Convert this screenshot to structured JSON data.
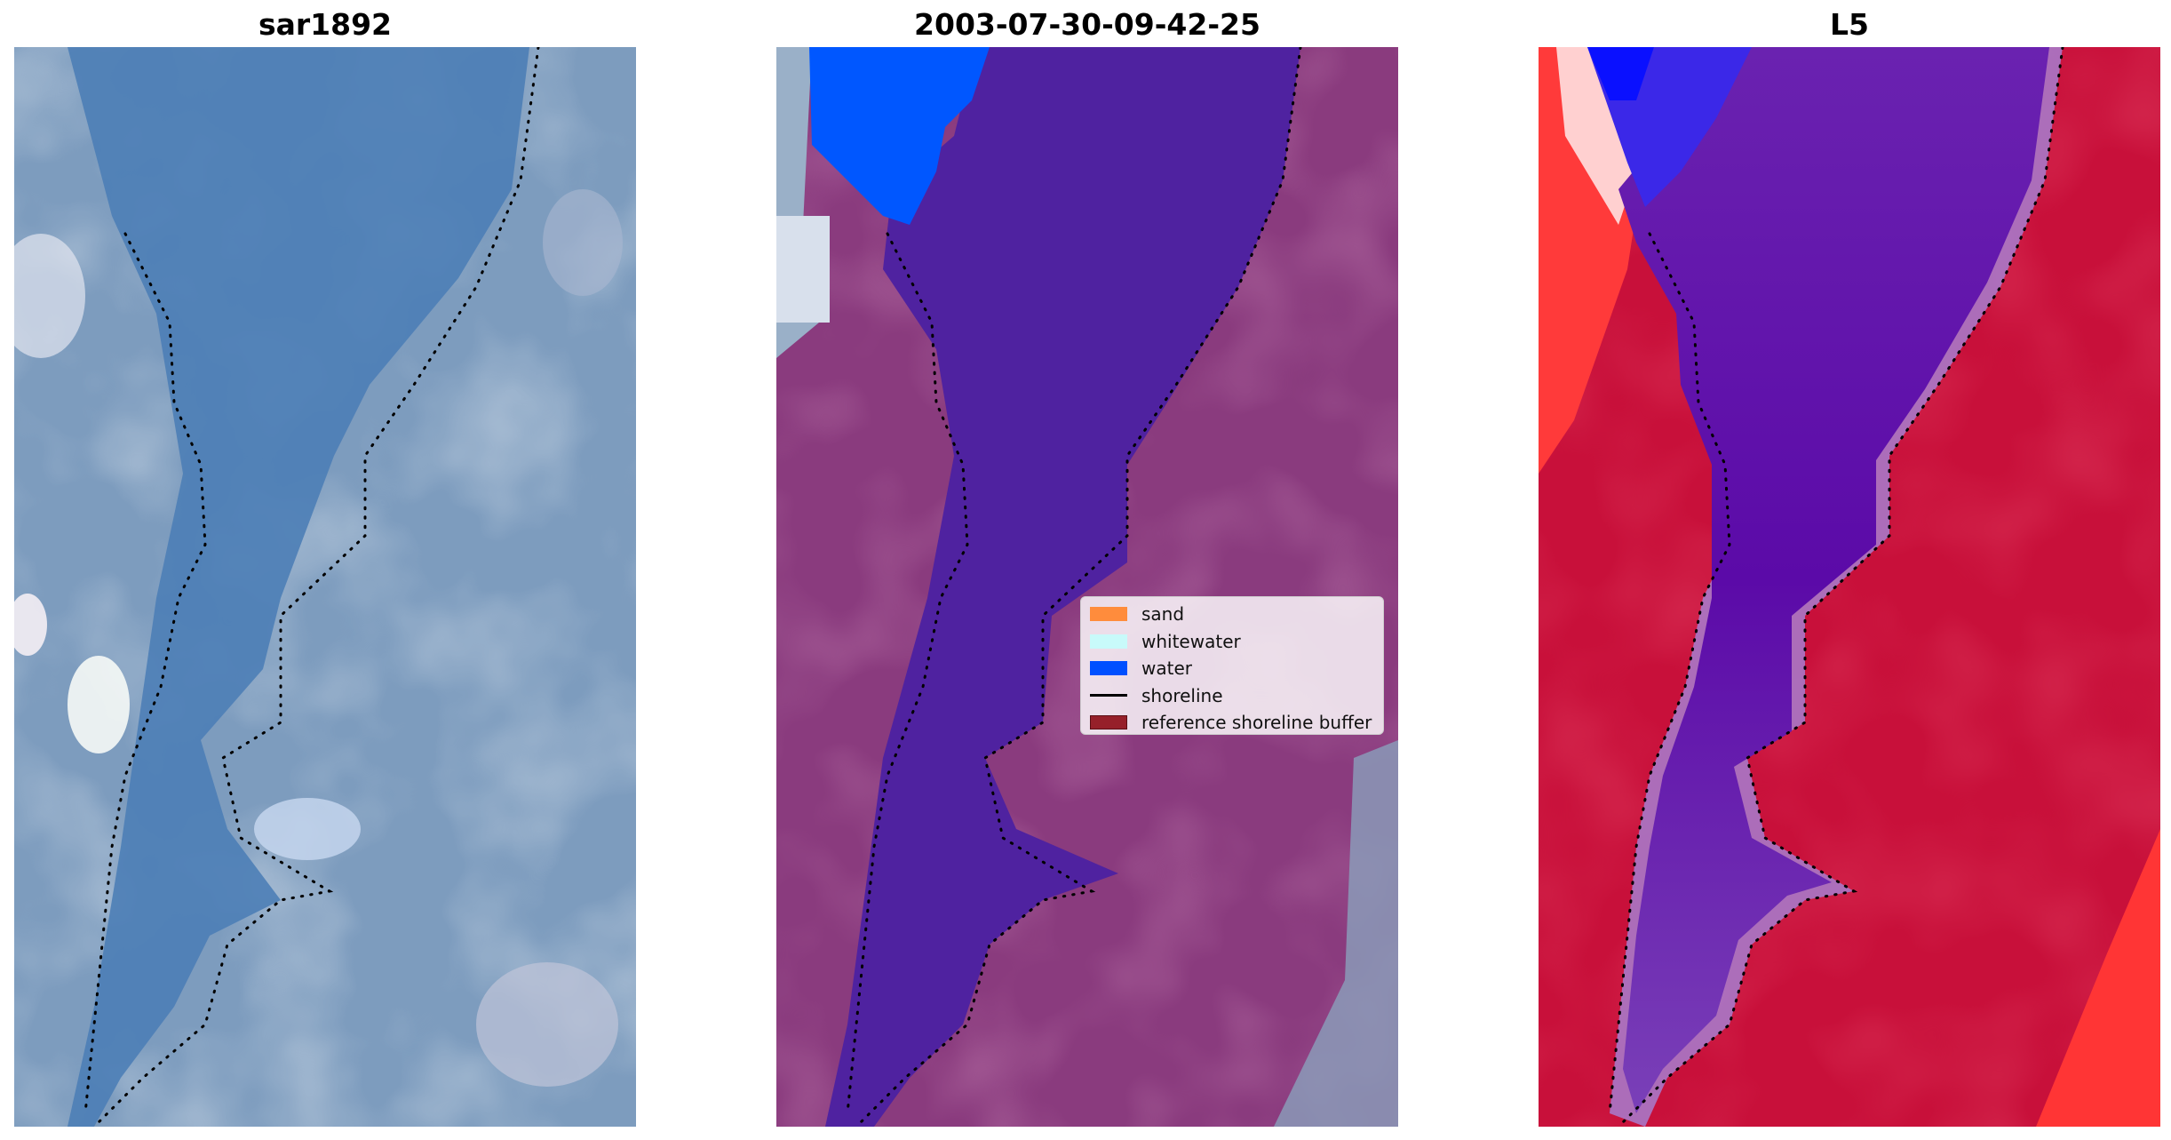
{
  "panels": [
    {
      "title": "sar1892",
      "content": "true-color satellite image"
    },
    {
      "title": "2003-07-30-09-42-25",
      "content": "classified image overlay"
    },
    {
      "title": "L5",
      "content": "water index image"
    }
  ],
  "legend": {
    "items": [
      {
        "label": "sand",
        "color": "#ff8c3c",
        "kind": "patch"
      },
      {
        "label": "whitewater",
        "color": "#c8fafa",
        "kind": "patch"
      },
      {
        "label": "water",
        "color": "#0050ff",
        "kind": "patch"
      },
      {
        "label": "shoreline",
        "color": "#000000",
        "kind": "line"
      },
      {
        "label": "reference shoreline buffer",
        "color": "#96202a",
        "kind": "patch"
      }
    ]
  },
  "colors": {
    "river_rgb": "#4c7eb6",
    "land_rgb": "#7d9cbe",
    "water_class": "#4f22a0",
    "land_class": "#8a3b7e",
    "index_high": "#c8103a",
    "index_low": "#5b0aa8"
  }
}
